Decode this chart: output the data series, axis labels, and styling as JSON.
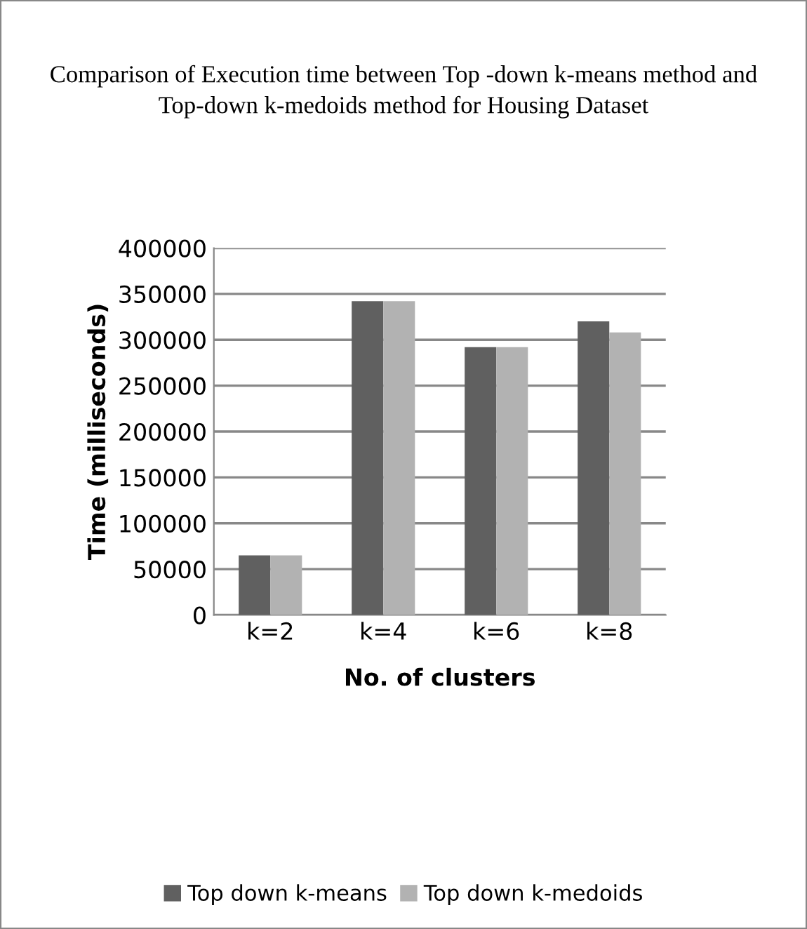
{
  "chart_data": {
    "type": "bar",
    "title": "Comparison of Execution time between Top -down k-means method and Top-down k-medoids method for Housing Dataset",
    "xlabel": "No. of clusters",
    "ylabel": "Time (milliseconds)",
    "categories": [
      "k=2",
      "k=4",
      "k=6",
      "k=8"
    ],
    "series": [
      {
        "name": "Top down k-means",
        "color": "#606060",
        "values": [
          65000,
          342000,
          292000,
          320000
        ]
      },
      {
        "name": "Top down k-medoids",
        "color": "#b2b2b2",
        "values": [
          65000,
          342000,
          292000,
          308000
        ]
      }
    ],
    "ylim": [
      0,
      400000
    ],
    "yticks": [
      0,
      50000,
      100000,
      150000,
      200000,
      250000,
      300000,
      350000,
      400000
    ],
    "grid": "y",
    "legend": "bottom"
  }
}
